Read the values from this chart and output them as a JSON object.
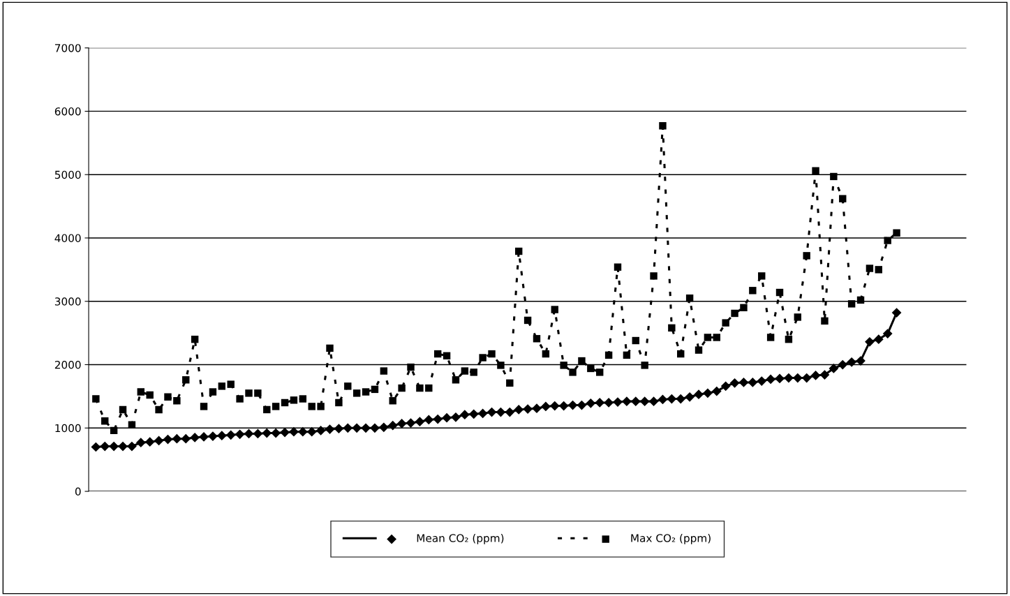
{
  "chart_data": {
    "type": "line",
    "categories": [
      null,
      null,
      null,
      null,
      null,
      null,
      null,
      null,
      null,
      null,
      null,
      null,
      null,
      null,
      null,
      null,
      null,
      null,
      null,
      null,
      null,
      null,
      null,
      null,
      null,
      null,
      null,
      null,
      null,
      null,
      null,
      null,
      null,
      null,
      null,
      null,
      null,
      null,
      null,
      null,
      null,
      null,
      null,
      null,
      null,
      null,
      null,
      null,
      null,
      null,
      null,
      null,
      null,
      null,
      null,
      null,
      null,
      null,
      null,
      null,
      null,
      null,
      null,
      null,
      null,
      null,
      null,
      null,
      null,
      null,
      null,
      null,
      null,
      null,
      null,
      null,
      null,
      null,
      null,
      null,
      null,
      null,
      null,
      null,
      null,
      null,
      null,
      null,
      null,
      null
    ],
    "series": [
      {
        "name": "Mean CO₂ (ppm)",
        "color": "#000000",
        "marker": "diamond",
        "line_style": "solid",
        "values": [
          700,
          710,
          710,
          710,
          710,
          770,
          780,
          800,
          820,
          830,
          830,
          850,
          860,
          870,
          880,
          890,
          900,
          910,
          910,
          920,
          920,
          930,
          940,
          940,
          940,
          960,
          980,
          990,
          1000,
          1000,
          1000,
          1000,
          1010,
          1040,
          1070,
          1080,
          1100,
          1130,
          1140,
          1160,
          1170,
          1210,
          1220,
          1230,
          1250,
          1250,
          1250,
          1290,
          1300,
          1310,
          1340,
          1350,
          1350,
          1360,
          1360,
          1390,
          1400,
          1400,
          1410,
          1420,
          1420,
          1420,
          1420,
          1450,
          1460,
          1460,
          1490,
          1530,
          1550,
          1580,
          1660,
          1710,
          1720,
          1720,
          1740,
          1770,
          1780,
          1790,
          1790,
          1790,
          1830,
          1840,
          1940,
          2000,
          2040,
          2060,
          2360,
          2400,
          2490,
          2820
        ]
      },
      {
        "name": "Max CO₂ (ppm)",
        "color": "#000000",
        "marker": "square",
        "line_style": "dashed",
        "values": [
          1460,
          1110,
          960,
          1290,
          1050,
          1570,
          1520,
          1290,
          1490,
          1430,
          1760,
          2400,
          1340,
          1570,
          1660,
          1690,
          1460,
          1550,
          1550,
          1290,
          1340,
          1400,
          1440,
          1460,
          1340,
          1340,
          2260,
          1400,
          1660,
          1550,
          1570,
          1610,
          1900,
          1430,
          1630,
          1960,
          1630,
          1630,
          2170,
          2140,
          1760,
          1900,
          1880,
          2110,
          2170,
          1990,
          1710,
          3790,
          2700,
          2410,
          2170,
          2870,
          1990,
          1880,
          2060,
          1940,
          1880,
          2150,
          3540,
          2150,
          2380,
          1990,
          3400,
          5770,
          2580,
          2170,
          3050,
          2230,
          2430,
          2430,
          2660,
          2810,
          2900,
          3170,
          3400,
          2430,
          3140,
          2400,
          2750,
          3720,
          5060,
          2690,
          4970,
          4620,
          2960,
          3020,
          3520,
          3500,
          3960,
          4080
        ]
      }
    ],
    "ylim": [
      0,
      7000
    ],
    "yticks": [
      0,
      1000,
      2000,
      3000,
      4000,
      5000,
      6000,
      7000
    ],
    "grid": "y",
    "legend": "bottom"
  }
}
